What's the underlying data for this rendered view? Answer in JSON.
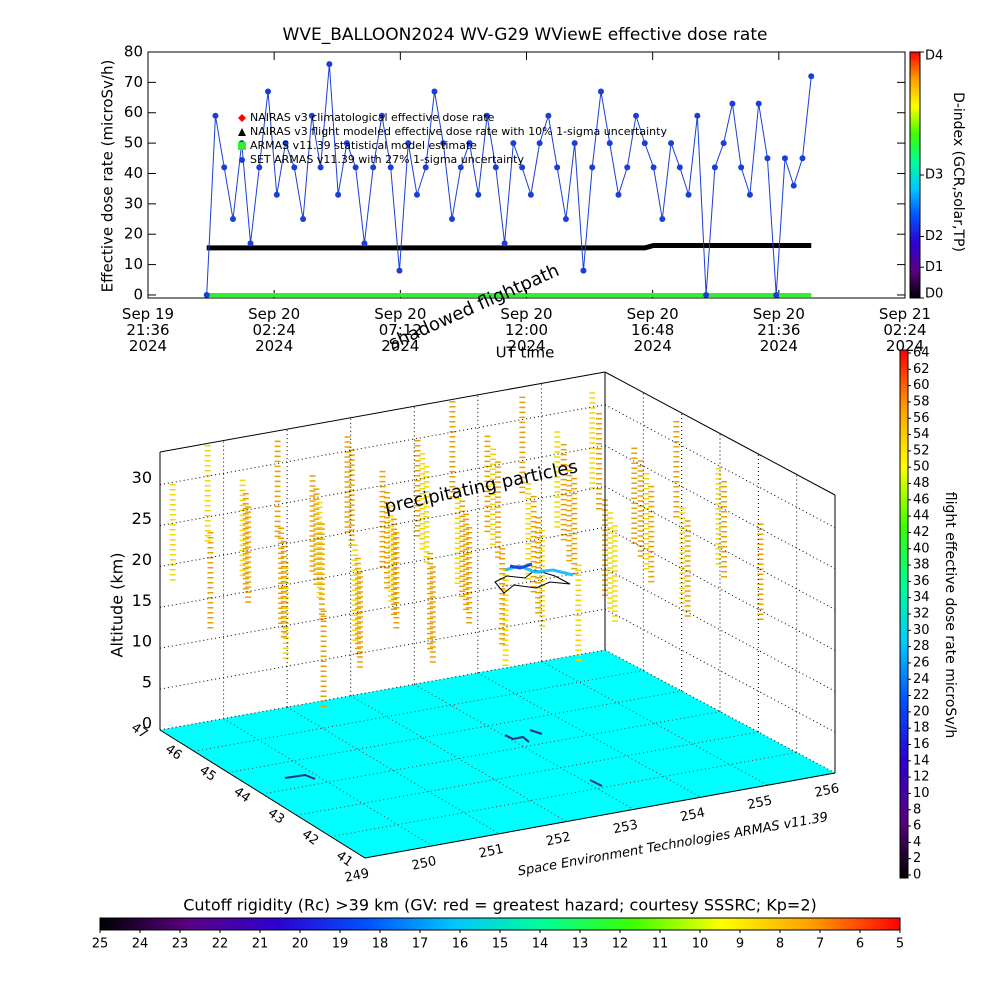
{
  "chart_data": [
    {
      "type": "line",
      "title": "WVE_BALLOON2024 WV-G29 WViewE effective dose rate",
      "ylabel": "Effective dose rate (microSv/h)",
      "xlabel": "UT time",
      "xlim": [
        "2024-09-19T21:36",
        "2024-09-21T02:24"
      ],
      "xticks": [
        {
          "value": "2024-09-19T21:36",
          "label": "Sep 19 21:36 2024"
        },
        {
          "value": "2024-09-20T02:24",
          "label": "Sep 20 02:24 2024"
        },
        {
          "value": "2024-09-20T07:12",
          "label": "Sep 20 07:12 2024"
        },
        {
          "value": "2024-09-20T12:00",
          "label": "Sep 20 12:00 2024"
        },
        {
          "value": "2024-09-20T16:48",
          "label": "Sep 20 16:48 2024"
        },
        {
          "value": "2024-09-20T21:36",
          "label": "Sep 20 21:36 2024"
        },
        {
          "value": "2024-09-21T02:24",
          "label": "Sep 21 02:24 2024"
        }
      ],
      "ylim": [
        -1,
        80
      ],
      "yticks": [
        0,
        10,
        20,
        30,
        40,
        50,
        60,
        70,
        80
      ],
      "x": [
        "2024-09-19T23:50",
        "2024-09-20T00:10",
        "2024-09-20T00:30",
        "2024-09-20T00:50",
        "2024-09-20T01:10",
        "2024-09-20T01:30",
        "2024-09-20T01:50",
        "2024-09-20T02:10",
        "2024-09-20T02:30",
        "2024-09-20T02:50",
        "2024-09-20T03:10",
        "2024-09-20T03:30",
        "2024-09-20T03:50",
        "2024-09-20T04:10",
        "2024-09-20T04:30",
        "2024-09-20T04:50",
        "2024-09-20T05:10",
        "2024-09-20T05:30",
        "2024-09-20T05:50",
        "2024-09-20T06:10",
        "2024-09-20T06:30",
        "2024-09-20T06:50",
        "2024-09-20T07:10",
        "2024-09-20T07:30",
        "2024-09-20T07:50",
        "2024-09-20T08:10",
        "2024-09-20T08:30",
        "2024-09-20T08:50",
        "2024-09-20T09:10",
        "2024-09-20T09:30",
        "2024-09-20T09:50",
        "2024-09-20T10:10",
        "2024-09-20T10:30",
        "2024-09-20T10:50",
        "2024-09-20T11:10",
        "2024-09-20T11:30",
        "2024-09-20T11:50",
        "2024-09-20T12:10",
        "2024-09-20T12:30",
        "2024-09-20T12:50",
        "2024-09-20T13:10",
        "2024-09-20T13:30",
        "2024-09-20T13:50",
        "2024-09-20T14:10",
        "2024-09-20T14:30",
        "2024-09-20T14:50",
        "2024-09-20T15:10",
        "2024-09-20T15:30",
        "2024-09-20T15:50",
        "2024-09-20T16:10",
        "2024-09-20T16:30",
        "2024-09-20T16:50",
        "2024-09-20T17:10",
        "2024-09-20T17:30",
        "2024-09-20T17:50",
        "2024-09-20T18:10",
        "2024-09-20T18:30",
        "2024-09-20T18:50",
        "2024-09-20T19:10",
        "2024-09-20T19:30",
        "2024-09-20T19:50",
        "2024-09-20T20:10",
        "2024-09-20T20:30",
        "2024-09-20T20:50",
        "2024-09-20T21:10",
        "2024-09-20T21:30",
        "2024-09-20T21:50",
        "2024-09-20T22:10",
        "2024-09-20T22:30",
        "2024-09-20T22:50"
      ],
      "series": [
        {
          "name": "NAIRAS v3 climatological effective dose rate",
          "color": "#ff0000",
          "marker": "diamond",
          "width": 1,
          "values": [
            15.5,
            15.5,
            15.5,
            15.5,
            15.5,
            15.5,
            15.5,
            15.5,
            15.5,
            15.5,
            15.5,
            15.5,
            15.5,
            15.5,
            15.5,
            15.5,
            15.5,
            15.5,
            15.5,
            15.5,
            15.5,
            15.5,
            15.5,
            15.5,
            15.5,
            15.5,
            15.5,
            15.5,
            15.5,
            15.5,
            15.5,
            15.5,
            15.5,
            15.5,
            15.5,
            15.5,
            15.5,
            15.5,
            15.5,
            15.5,
            15.5,
            15.5,
            15.5,
            15.5,
            15.5,
            15.5,
            15.5,
            15.5,
            15.5,
            15.5,
            15.5,
            16.3,
            16.3,
            16.3,
            16.3,
            16.3,
            16.3,
            16.3,
            16.3,
            16.3,
            16.3,
            16.3,
            16.3,
            16.3,
            16.3,
            16.3,
            16.3,
            16.3,
            16.3,
            16.3
          ]
        },
        {
          "name": "NAIRAS v3 flight modeled effective dose rate with 10% 1-sigma uncertainty",
          "color": "#000000",
          "marker": "triangle",
          "width": 5,
          "values": [
            15.5,
            15.5,
            15.5,
            15.5,
            15.5,
            15.5,
            15.5,
            15.5,
            15.5,
            15.5,
            15.5,
            15.5,
            15.5,
            15.5,
            15.5,
            15.5,
            15.5,
            15.5,
            15.5,
            15.5,
            15.5,
            15.5,
            15.5,
            15.5,
            15.5,
            15.5,
            15.5,
            15.5,
            15.5,
            15.5,
            15.5,
            15.5,
            15.5,
            15.5,
            15.5,
            15.5,
            15.5,
            15.5,
            15.5,
            15.5,
            15.5,
            15.5,
            15.5,
            15.5,
            15.5,
            15.5,
            15.5,
            15.5,
            15.5,
            15.5,
            15.5,
            16.3,
            16.3,
            16.3,
            16.3,
            16.3,
            16.3,
            16.3,
            16.3,
            16.3,
            16.3,
            16.3,
            16.3,
            16.3,
            16.3,
            16.3,
            16.3,
            16.3,
            16.3,
            16.3
          ]
        },
        {
          "name": "ARMAS v11.39 statistical model estimate",
          "color": "#33ee33",
          "marker": "square",
          "width": 4,
          "values": [
            0,
            0,
            0,
            0,
            0,
            0,
            0,
            0,
            0,
            0,
            0,
            0,
            0,
            0,
            0,
            0,
            0,
            0,
            0,
            0,
            0,
            0,
            0,
            0,
            0,
            0,
            0,
            0,
            0,
            0,
            0,
            0,
            0,
            0,
            0,
            0,
            0,
            0,
            0,
            0,
            0,
            0,
            0,
            0,
            0,
            0,
            0,
            0,
            0,
            0,
            0,
            0,
            0,
            0,
            0,
            0,
            0,
            0,
            0,
            0,
            0,
            0,
            0,
            0,
            0,
            0,
            0,
            0,
            0,
            0
          ]
        },
        {
          "name": "SET ARMAS v11.39 with 27% 1-sigma uncertainty",
          "color": "#1a3fd6",
          "marker": "circle",
          "width": 1,
          "values": [
            0,
            59,
            42,
            25,
            50,
            17,
            42,
            67,
            33,
            50,
            42,
            25,
            59,
            42,
            76,
            33,
            50,
            42,
            17,
            42,
            59,
            42,
            8,
            50,
            33,
            42,
            67,
            50,
            25,
            42,
            50,
            33,
            59,
            42,
            17,
            50,
            42,
            33,
            50,
            59,
            42,
            25,
            50,
            8,
            42,
            67,
            50,
            33,
            42,
            59,
            50,
            42,
            25,
            50,
            42,
            33,
            59,
            0,
            42,
            50,
            63,
            42,
            33,
            63,
            45,
            0,
            45,
            36,
            45,
            72
          ]
        }
      ],
      "colorbar": {
        "label": "D-index (GCR,solar,TP)",
        "lim": [
          0,
          4
        ],
        "ticks": [
          {
            "value": 0,
            "label": "D0"
          },
          {
            "value": 0.5,
            "label": "D1"
          },
          {
            "value": 1,
            "label": "D2"
          },
          {
            "value": 2,
            "label": "D3"
          },
          {
            "value": 4,
            "label": "D4"
          }
        ],
        "colors": [
          "#000000",
          "#5a0082",
          "#2d00d2",
          "#0050ff",
          "#00c8ff",
          "#00ff96",
          "#3cff00",
          "#ffff00",
          "#ffa000",
          "#ff0000"
        ]
      }
    },
    {
      "type": "box3d",
      "zlabel": "Altitude (km)",
      "zlim": [
        0,
        34
      ],
      "zticks": [
        0,
        5,
        10,
        15,
        20,
        25,
        30
      ],
      "latlim": [
        47,
        41
      ],
      "latticks": [
        47,
        46,
        45,
        44,
        43,
        42,
        41
      ],
      "lonlim": [
        249,
        256
      ],
      "lonticks": [
        249,
        250,
        251,
        252,
        253,
        254,
        255,
        256
      ],
      "annotations": [
        "precipitating particles",
        "shadowed flightpath",
        "Space Environment Technologies ARMAS v11.39"
      ],
      "colorbar": {
        "label": "flight effective dose rate microSv/h",
        "lim": [
          0,
          64
        ],
        "ticks": [
          0,
          2,
          4,
          6,
          8,
          10,
          12,
          14,
          16,
          18,
          20,
          22,
          24,
          26,
          28,
          30,
          32,
          34,
          36,
          38,
          40,
          42,
          44,
          46,
          48,
          50,
          52,
          54,
          56,
          58,
          60,
          62,
          64
        ],
        "colors": [
          "#000000",
          "#5a0082",
          "#2d00d2",
          "#0050ff",
          "#00c8ff",
          "#00ff96",
          "#3cff00",
          "#ffff00",
          "#ffa000",
          "#ff0000"
        ]
      }
    },
    {
      "type": "colorbar",
      "title": "Cutoff rigidity (Rc) >39 km (GV: red = greatest hazard; courtesy SSSRC; Kp=2)",
      "lim": [
        25,
        5
      ],
      "ticks": [
        25,
        24,
        23,
        22,
        21,
        20,
        19,
        18,
        17,
        16,
        15,
        14,
        13,
        12,
        11,
        10,
        9,
        8,
        7,
        6,
        5
      ],
      "colors": [
        "#000000",
        "#5a0082",
        "#2d00d2",
        "#0050ff",
        "#00c8ff",
        "#00ff96",
        "#3cff00",
        "#ffff00",
        "#ffa000",
        "#ff0000"
      ]
    }
  ]
}
